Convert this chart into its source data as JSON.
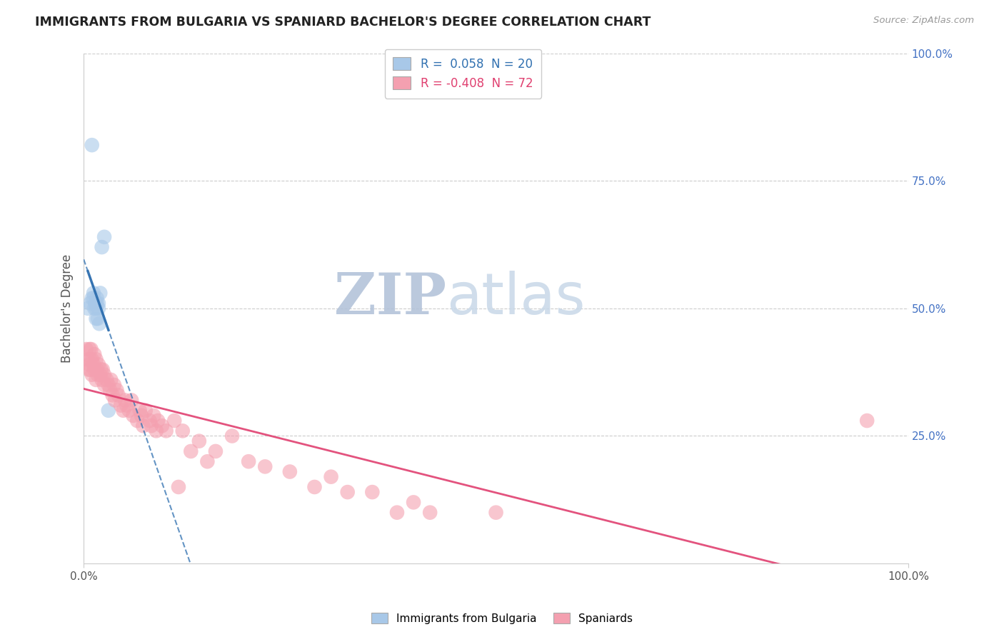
{
  "title": "IMMIGRANTS FROM BULGARIA VS SPANIARD BACHELOR'S DEGREE CORRELATION CHART",
  "source": "Source: ZipAtlas.com",
  "ylabel": "Bachelor's Degree",
  "right_yticks": [
    "25.0%",
    "50.0%",
    "75.0%",
    "100.0%"
  ],
  "right_ytick_vals": [
    0.25,
    0.5,
    0.75,
    1.0
  ],
  "legend_blue_label": "Immigrants from Bulgaria",
  "legend_pink_label": "Spaniards",
  "R_blue": 0.058,
  "N_blue": 20,
  "R_pink": -0.408,
  "N_pink": 72,
  "blue_color": "#a8c8e8",
  "pink_color": "#f4a0b0",
  "blue_line_color": "#3070b0",
  "pink_line_color": "#e04070",
  "blue_scatter_x": [
    0.005,
    0.008,
    0.01,
    0.012,
    0.012,
    0.013,
    0.014,
    0.015,
    0.015,
    0.016,
    0.016,
    0.017,
    0.018,
    0.018,
    0.019,
    0.02,
    0.022,
    0.025,
    0.03,
    0.01
  ],
  "blue_scatter_y": [
    0.5,
    0.51,
    0.52,
    0.52,
    0.53,
    0.5,
    0.51,
    0.48,
    0.5,
    0.51,
    0.52,
    0.48,
    0.5,
    0.51,
    0.47,
    0.53,
    0.62,
    0.64,
    0.3,
    0.82
  ],
  "pink_scatter_x": [
    0.003,
    0.005,
    0.006,
    0.007,
    0.007,
    0.008,
    0.008,
    0.009,
    0.01,
    0.01,
    0.012,
    0.013,
    0.013,
    0.015,
    0.015,
    0.016,
    0.017,
    0.018,
    0.02,
    0.021,
    0.022,
    0.023,
    0.025,
    0.025,
    0.028,
    0.03,
    0.032,
    0.033,
    0.035,
    0.037,
    0.038,
    0.04,
    0.042,
    0.045,
    0.048,
    0.05,
    0.052,
    0.055,
    0.058,
    0.06,
    0.065,
    0.068,
    0.07,
    0.072,
    0.075,
    0.08,
    0.082,
    0.085,
    0.088,
    0.09,
    0.095,
    0.1,
    0.11,
    0.115,
    0.12,
    0.13,
    0.14,
    0.15,
    0.16,
    0.18,
    0.2,
    0.22,
    0.25,
    0.28,
    0.3,
    0.32,
    0.35,
    0.38,
    0.4,
    0.42,
    0.5,
    0.95
  ],
  "pink_scatter_y": [
    0.42,
    0.4,
    0.38,
    0.42,
    0.39,
    0.4,
    0.38,
    0.42,
    0.4,
    0.37,
    0.39,
    0.38,
    0.41,
    0.36,
    0.4,
    0.38,
    0.37,
    0.39,
    0.37,
    0.38,
    0.36,
    0.38,
    0.35,
    0.37,
    0.36,
    0.35,
    0.34,
    0.36,
    0.33,
    0.35,
    0.32,
    0.34,
    0.33,
    0.31,
    0.3,
    0.32,
    0.31,
    0.3,
    0.32,
    0.29,
    0.28,
    0.3,
    0.29,
    0.27,
    0.3,
    0.28,
    0.27,
    0.29,
    0.26,
    0.28,
    0.27,
    0.26,
    0.28,
    0.15,
    0.26,
    0.22,
    0.24,
    0.2,
    0.22,
    0.25,
    0.2,
    0.19,
    0.18,
    0.15,
    0.17,
    0.14,
    0.14,
    0.1,
    0.12,
    0.1,
    0.1,
    0.28
  ],
  "xlim": [
    0.0,
    1.0
  ],
  "ylim": [
    0.0,
    1.0
  ],
  "background_color": "#ffffff",
  "grid_color": "#cccccc",
  "watermark_zip": "ZIP",
  "watermark_atlas": "atlas",
  "watermark_zip_color": "#b0c0d8",
  "watermark_atlas_color": "#c8d8e8"
}
